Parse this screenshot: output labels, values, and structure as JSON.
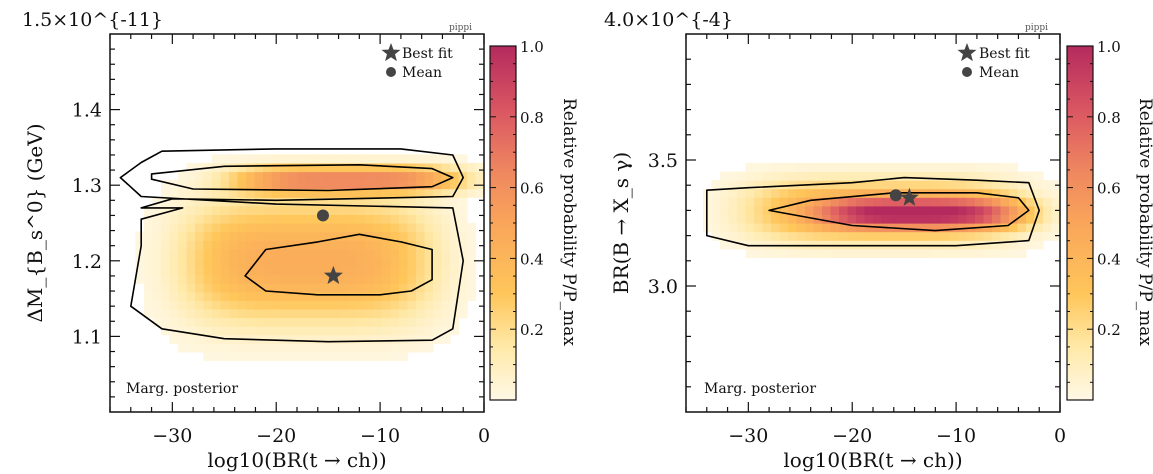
{
  "figure": {
    "colors": {
      "scale": [
        "#fff8e6",
        "#ffe9a8",
        "#ffc65a",
        "#f9a55a",
        "#ee8660",
        "#dd5b62",
        "#b52a5e"
      ],
      "marker": "#444444",
      "contour": "#000000"
    }
  },
  "chart_data": [
    {
      "type": "heatmap",
      "title": "",
      "tag": "pippi",
      "xlabel": "log10(BR(t → ch))",
      "ylabel": "ΔM_{B_s^0} (GeV)",
      "xlim": [
        -36,
        0
      ],
      "ylim": [
        1.0,
        1.5
      ],
      "x_ticks": [
        -30,
        -20,
        -10,
        0
      ],
      "y_ticks": [
        1.1,
        1.2,
        1.3,
        1.4
      ],
      "y_tick_labels": [
        "1.1",
        "1.2",
        "1.3",
        "1.4"
      ],
      "y_axis_multiplier": "1.5×10^{-11}",
      "annotation": "Marg. posterior",
      "colorbar": {
        "label": "Relative probability P/P_max",
        "range": [
          0,
          1
        ],
        "ticks": [
          0.2,
          0.4,
          0.6,
          0.8,
          1.0
        ],
        "tick_labels": [
          "0.2",
          "0.4",
          "0.6",
          "0.8",
          "1.0"
        ]
      },
      "legend": {
        "position": "top-right",
        "entries": [
          {
            "marker": "star",
            "label": "Best fit"
          },
          {
            "marker": "circle",
            "label": "Mean"
          }
        ]
      },
      "best_fit": {
        "x": -14.5,
        "y": 1.18
      },
      "mean": {
        "x": -15.5,
        "y": 1.26
      },
      "density_blobs": [
        {
          "cx": -17,
          "cy": 1.2,
          "sx": 12,
          "sy": 0.08,
          "w": 0.45
        },
        {
          "cx": -13,
          "cy": 1.308,
          "sx": 11,
          "sy": 0.018,
          "w": 0.6
        }
      ],
      "contours": [
        {
          "level": "outer",
          "points": [
            [
              -33,
              1.33
            ],
            [
              -31,
              1.345
            ],
            [
              -20,
              1.348
            ],
            [
              -8,
              1.348
            ],
            [
              -3,
              1.34
            ],
            [
              -2,
              1.31
            ],
            [
              -3,
              1.285
            ],
            [
              -20,
              1.28
            ],
            [
              -30,
              1.282
            ],
            [
              -33,
              1.27
            ],
            [
              -29,
              1.27
            ],
            [
              -33,
              1.255
            ],
            [
              -33,
              1.22
            ],
            [
              -34,
              1.14
            ],
            [
              -31,
              1.11
            ],
            [
              -25,
              1.097
            ],
            [
              -15,
              1.093
            ],
            [
              -5,
              1.095
            ],
            [
              -3,
              1.11
            ],
            [
              -2,
              1.2
            ],
            [
              -3,
              1.27
            ],
            [
              -20,
              1.275
            ],
            [
              -33,
              1.285
            ],
            [
              -35,
              1.31
            ],
            [
              -33,
              1.33
            ]
          ]
        },
        {
          "level": "inner",
          "points": [
            [
              -32,
              1.315
            ],
            [
              -25,
              1.325
            ],
            [
              -12,
              1.327
            ],
            [
              -5,
              1.322
            ],
            [
              -3,
              1.31
            ],
            [
              -5,
              1.298
            ],
            [
              -15,
              1.293
            ],
            [
              -28,
              1.295
            ],
            [
              -32,
              1.308
            ],
            [
              -32,
              1.315
            ]
          ]
        },
        {
          "level": "inner",
          "points": [
            [
              -23,
              1.18
            ],
            [
              -21,
              1.215
            ],
            [
              -16,
              1.225
            ],
            [
              -12,
              1.235
            ],
            [
              -8,
              1.225
            ],
            [
              -5,
              1.215
            ],
            [
              -5,
              1.175
            ],
            [
              -7,
              1.16
            ],
            [
              -10,
              1.155
            ],
            [
              -16,
              1.155
            ],
            [
              -21,
              1.16
            ],
            [
              -23,
              1.18
            ]
          ]
        }
      ]
    },
    {
      "type": "heatmap",
      "title": "",
      "tag": "pippi",
      "xlabel": "log10(BR(t → ch))",
      "ylabel": "BR(B → X_s γ)",
      "xlim": [
        -36,
        0
      ],
      "ylim": [
        2.5,
        4.0
      ],
      "x_ticks": [
        -30,
        -20,
        -10,
        0
      ],
      "y_ticks": [
        3.0,
        3.5
      ],
      "y_tick_labels": [
        "3.0",
        "3.5"
      ],
      "y_axis_multiplier": "4.0×10^{-4}",
      "annotation": "Marg. posterior",
      "colorbar": {
        "label": "Relative probability P/P_max",
        "range": [
          0,
          1
        ],
        "ticks": [
          0.2,
          0.4,
          0.6,
          0.8,
          1.0
        ],
        "tick_labels": [
          "0.2",
          "0.4",
          "0.6",
          "0.8",
          "1.0"
        ]
      },
      "legend": {
        "position": "top-right",
        "entries": [
          {
            "marker": "star",
            "label": "Best fit"
          },
          {
            "marker": "circle",
            "label": "Mean"
          }
        ]
      },
      "best_fit": {
        "x": -14.5,
        "y": 3.35
      },
      "mean": {
        "x": -15.8,
        "y": 3.36
      },
      "density_blobs": [
        {
          "cx": -17,
          "cy": 3.3,
          "sx": 13,
          "sy": 0.12,
          "w": 0.45
        },
        {
          "cx": -13,
          "cy": 3.29,
          "sx": 10,
          "sy": 0.06,
          "w": 0.6
        }
      ],
      "contours": [
        {
          "level": "outer",
          "points": [
            [
              -34,
              3.3
            ],
            [
              -34,
              3.38
            ],
            [
              -30,
              3.39
            ],
            [
              -20,
              3.41
            ],
            [
              -15,
              3.43
            ],
            [
              -8,
              3.42
            ],
            [
              -3,
              3.41
            ],
            [
              -2,
              3.3
            ],
            [
              -3,
              3.18
            ],
            [
              -10,
              3.16
            ],
            [
              -20,
              3.16
            ],
            [
              -30,
              3.16
            ],
            [
              -34,
              3.2
            ],
            [
              -34,
              3.3
            ]
          ]
        },
        {
          "level": "inner",
          "points": [
            [
              -28,
              3.3
            ],
            [
              -24,
              3.34
            ],
            [
              -16,
              3.37
            ],
            [
              -8,
              3.37
            ],
            [
              -4,
              3.35
            ],
            [
              -3,
              3.3
            ],
            [
              -5,
              3.24
            ],
            [
              -12,
              3.22
            ],
            [
              -20,
              3.24
            ],
            [
              -28,
              3.3
            ]
          ]
        }
      ]
    }
  ]
}
